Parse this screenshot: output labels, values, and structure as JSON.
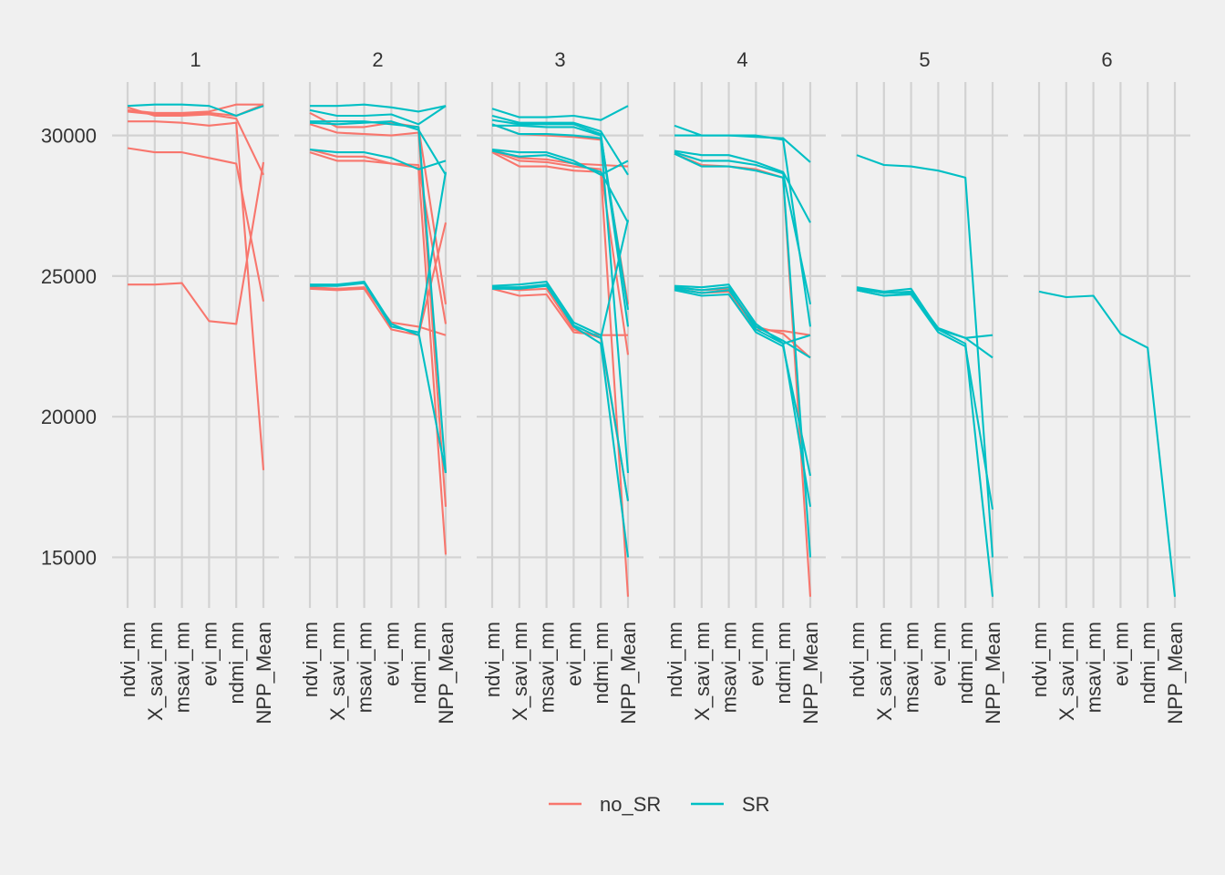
{
  "chart_data": {
    "type": "line",
    "title": "",
    "xlabel": "",
    "ylabel": "",
    "facets": [
      "1",
      "2",
      "3",
      "4",
      "5",
      "6"
    ],
    "categories": [
      "ndvi_mn",
      "X_savi_mn",
      "msavi_mn",
      "evi_mn",
      "ndmi_mn",
      "NPP_Mean"
    ],
    "ylim": [
      13200,
      31900
    ],
    "yticks": [
      15000,
      20000,
      25000,
      30000
    ],
    "ytick_labels": [
      "15000",
      "20000",
      "25000",
      "30000"
    ],
    "grid": true,
    "legend_position": "bottom",
    "legend": [
      {
        "name": "no_SR",
        "color": "#F8766D"
      },
      {
        "name": "SR",
        "color": "#00BFC4"
      }
    ],
    "panels": [
      {
        "facet": "1",
        "no_SR": [
          [
            31000,
            30700,
            30700,
            30750,
            30600,
            28600
          ],
          [
            30850,
            30750,
            30750,
            30800,
            30700,
            31100
          ],
          [
            30500,
            30500,
            30450,
            30350,
            30450,
            18100
          ],
          [
            29550,
            29400,
            29400,
            29200,
            29000,
            24100
          ],
          [
            24700,
            24700,
            24750,
            23400,
            23300,
            29050
          ],
          [
            30900,
            30800,
            30800,
            30850,
            31100,
            31100
          ]
        ],
        "SR": [
          [
            31050,
            31100,
            31100,
            31050,
            30700,
            31050
          ]
        ]
      },
      {
        "facet": "2",
        "no_SR": [
          [
            30800,
            30300,
            30300,
            30450,
            30300,
            24000
          ],
          [
            29400,
            29100,
            29100,
            29000,
            28850,
            15100
          ],
          [
            29500,
            29250,
            29250,
            29000,
            28950,
            23300
          ],
          [
            24550,
            24500,
            24550,
            23100,
            22900,
            26900
          ],
          [
            24600,
            24550,
            24600,
            23350,
            23200,
            22900
          ],
          [
            30400,
            30100,
            30050,
            30000,
            30100,
            16800
          ]
        ],
        "SR": [
          [
            31050,
            31050,
            31100,
            31000,
            30850,
            31050
          ],
          [
            30900,
            30700,
            30700,
            30750,
            30400,
            31050
          ],
          [
            30500,
            30500,
            30500,
            30400,
            30300,
            18000
          ],
          [
            29500,
            29400,
            29400,
            29200,
            28800,
            29100
          ],
          [
            24700,
            24700,
            24800,
            23300,
            22900,
            28700
          ],
          [
            24650,
            24650,
            24750,
            23200,
            23000,
            18000
          ],
          [
            30450,
            30400,
            30450,
            30500,
            30200,
            28600
          ]
        ]
      },
      {
        "facet": "3",
        "no_SR": [
          [
            29400,
            28900,
            28900,
            28750,
            28700,
            13600
          ],
          [
            29450,
            29100,
            29050,
            28900,
            28800,
            22200
          ],
          [
            24550,
            24300,
            24350,
            23000,
            22900,
            22900
          ],
          [
            24600,
            24500,
            24550,
            23100,
            22800,
            17000
          ],
          [
            30400,
            30050,
            30000,
            29950,
            29850,
            24000
          ],
          [
            29500,
            29200,
            29150,
            29000,
            28950,
            28900
          ]
        ],
        "SR": [
          [
            30950,
            30650,
            30650,
            30700,
            30550,
            31050
          ],
          [
            30700,
            30450,
            30450,
            30450,
            30150,
            28600
          ],
          [
            30550,
            30400,
            30400,
            30400,
            30050,
            23200
          ],
          [
            30400,
            30050,
            30050,
            30000,
            29900,
            18000
          ],
          [
            29500,
            29400,
            29400,
            29100,
            28600,
            29100
          ],
          [
            29450,
            29250,
            29300,
            29000,
            28700,
            26900
          ],
          [
            24650,
            24700,
            24800,
            23350,
            22900,
            17000
          ],
          [
            24600,
            24600,
            24700,
            23200,
            22600,
            15000
          ],
          [
            24550,
            24550,
            24650,
            23250,
            22800,
            27000
          ],
          [
            30350,
            30350,
            30300,
            30300,
            30000,
            23800
          ]
        ]
      },
      {
        "facet": "4",
        "no_SR": [
          [
            29350,
            28950,
            28900,
            28800,
            28500,
            13600
          ],
          [
            24550,
            24400,
            24450,
            23100,
            23050,
            22900
          ],
          [
            24600,
            24500,
            24550,
            23200,
            22950,
            22100
          ]
        ],
        "SR": [
          [
            30350,
            30000,
            30000,
            29950,
            29900,
            29050
          ],
          [
            29450,
            29300,
            29300,
            29050,
            28700,
            26900
          ],
          [
            29400,
            29100,
            29100,
            28950,
            28650,
            24000
          ],
          [
            29350,
            28900,
            28900,
            28750,
            28500,
            15000
          ],
          [
            24650,
            24600,
            24700,
            23300,
            22600,
            22900
          ],
          [
            24500,
            24300,
            24350,
            23000,
            22500,
            17900
          ],
          [
            24600,
            24500,
            24600,
            23100,
            22600,
            16800
          ],
          [
            30000,
            30000,
            30000,
            30000,
            29850,
            23200
          ],
          [
            24550,
            24400,
            24500,
            23200,
            22700,
            22100
          ]
        ]
      },
      {
        "facet": "5",
        "no_SR": [],
        "SR": [
          [
            29300,
            28950,
            28900,
            28750,
            28500,
            15000
          ],
          [
            24600,
            24450,
            24550,
            23100,
            22800,
            22100
          ],
          [
            24500,
            24300,
            24350,
            23000,
            22500,
            16700
          ],
          [
            24550,
            24400,
            24450,
            23150,
            22800,
            22900
          ],
          [
            24500,
            24300,
            24400,
            23100,
            22600,
            13600
          ]
        ]
      },
      {
        "facet": "6",
        "no_SR": [],
        "SR": [
          [
            24450,
            24250,
            24300,
            22950,
            22450,
            13600
          ]
        ]
      }
    ]
  }
}
